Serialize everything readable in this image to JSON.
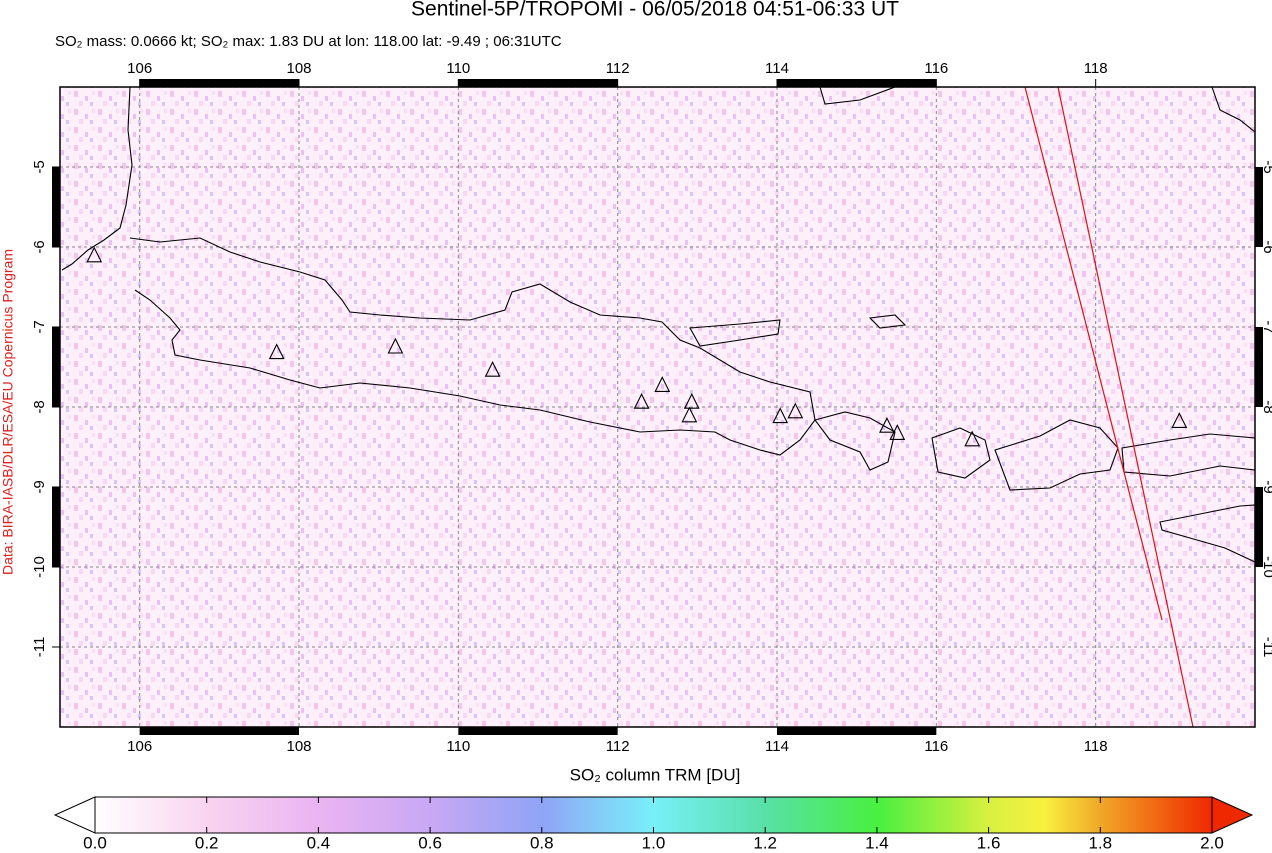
{
  "map": {
    "title": "Sentinel-5P/TROPOMI - 06/05/2018 04:51-06:33 UT",
    "subtitle": "SO₂ mass: 0.0666 kt; SO₂ max: 1.83 DU at lon: 118.00 lat: -9.49 ; 06:31UTC",
    "credit": "Data: BIRA-IASB/DLR/ESA/EU Copernicus Program",
    "xlim": [
      105,
      120
    ],
    "ylim": [
      -12,
      -4
    ],
    "xticks": [
      106,
      108,
      110,
      112,
      114,
      116,
      118
    ],
    "yticks": [
      -5,
      -6,
      -7,
      -8,
      -9,
      -10,
      -11
    ],
    "grid": true,
    "volcanoes": {
      "lon": [
        105.43,
        107.72,
        109.21,
        110.43,
        112.3,
        112.56,
        112.93,
        112.9,
        114.04,
        114.23,
        115.38,
        115.51,
        116.45,
        119.05
      ],
      "lat": [
        -6.11,
        -7.32,
        -7.25,
        -7.54,
        -7.94,
        -7.73,
        -7.94,
        -8.11,
        -8.12,
        -8.06,
        -8.24,
        -8.33,
        -8.41,
        -8.18
      ]
    },
    "colorbar": {
      "label": "SO₂ column TRM [DU]",
      "lim": [
        0,
        2
      ],
      "ticks": [
        {
          "value": 0,
          "label": "0.0"
        },
        {
          "value": 0.2,
          "label": "0.2"
        },
        {
          "value": 0.4,
          "label": "0.4"
        },
        {
          "value": 0.6,
          "label": "0.6"
        },
        {
          "value": 0.8,
          "label": "0.8"
        },
        {
          "value": 1,
          "label": "1.0"
        },
        {
          "value": 1.2,
          "label": "1.2"
        },
        {
          "value": 1.4,
          "label": "1.4"
        },
        {
          "value": 1.6,
          "label": "1.6"
        },
        {
          "value": 1.8,
          "label": "1.8"
        },
        {
          "value": 2,
          "label": "2.0"
        }
      ]
    }
  }
}
